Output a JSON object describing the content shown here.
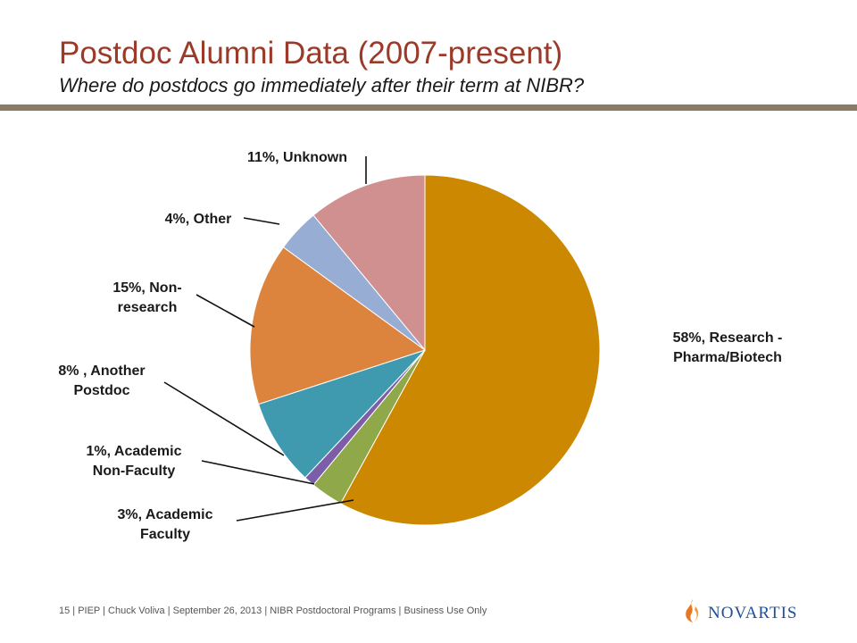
{
  "slide": {
    "title": "Postdoc Alumni Data (2007-present)",
    "subtitle": "Where do postdocs go immediately after their term at NIBR?",
    "footer": "15 | PIEP | Chuck Voliva | September 26, 2013 | NIBR Postdoctoral Programs | Business Use Only",
    "logo_text": "NOVARTIS",
    "rule_color": "#8b7b66"
  },
  "chart_data": {
    "type": "pie",
    "start": "12 o'clock",
    "direction": "clockwise",
    "slices": [
      {
        "label": "Research - Pharma/Biotech",
        "value": 58,
        "color": "#cc8800",
        "display_lines": [
          "58%, Research -",
          "Pharma/Biotech"
        ]
      },
      {
        "label": "Academic Faculty",
        "value": 3,
        "color": "#8ea84a",
        "display_lines": [
          "3%, Academic",
          "Faculty"
        ]
      },
      {
        "label": "Academic Non-Faculty",
        "value": 1,
        "color": "#7b5ea7",
        "display_lines": [
          "1%, Academic",
          "Non-Faculty"
        ]
      },
      {
        "label": "Another Postdoc",
        "value": 8,
        "color": "#3f9ab0",
        "display_lines": [
          "8% , Another",
          "Postdoc"
        ]
      },
      {
        "label": "Non-research",
        "value": 15,
        "color": "#dc843e",
        "display_lines": [
          "15%, Non-",
          "research"
        ]
      },
      {
        "label": "Other",
        "value": 4,
        "color": "#97add4",
        "display_lines": [
          "4%, Other"
        ]
      },
      {
        "label": "Unknown",
        "value": 11,
        "color": "#d19090",
        "display_lines": [
          "11%, Unknown"
        ]
      }
    ]
  }
}
